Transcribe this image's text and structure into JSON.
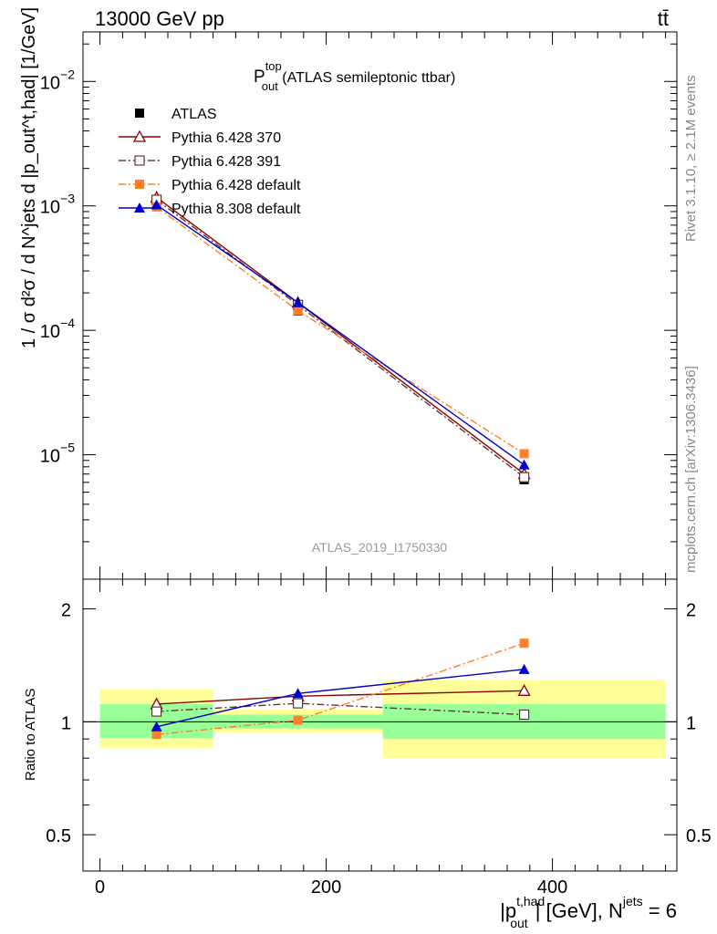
{
  "header": {
    "left": "13000 GeV pp",
    "right": "tt̄",
    "side_top": "Rivet 3.1.10, ≥ 2.1M events",
    "side_bottom": "mcplots.cern.ch [arXiv:1306.3436]",
    "watermark": "ATLAS_2019_I1750330"
  },
  "main_title": {
    "p": "P",
    "sup": "top",
    "sub": "out",
    "rest": " (ATLAS semileptonic ttbar)"
  },
  "axes": {
    "xlabel": {
      "pre": "|p",
      "sup": "t,had",
      "sub": "out",
      "mid": "| [GeV], N",
      "sup2": "jets",
      "post": " = 6"
    },
    "ylabel_top": "1 / σ d²σ / d N^jets d |p_out^t,had| [1/GeV]",
    "ylabel_ratio": "Ratio to ATLAS"
  },
  "ticks": {
    "top_y": [
      {
        "base": "10",
        "exp": "−2",
        "v": 0.01
      },
      {
        "base": "10",
        "exp": "−3",
        "v": 0.001
      },
      {
        "base": "10",
        "exp": "−4",
        "v": 0.0001
      },
      {
        "base": "10",
        "exp": "−5",
        "v": 1e-05
      }
    ],
    "ratio_y": [
      {
        "label": "2",
        "v": 2
      },
      {
        "label": "1",
        "v": 1
      },
      {
        "label": "0.5",
        "v": 0.5
      }
    ],
    "x": [
      {
        "label": "0",
        "v": 0
      },
      {
        "label": "200",
        "v": 200
      },
      {
        "label": "400",
        "v": 400
      }
    ]
  },
  "chart_data": [
    {
      "type": "line",
      "title": "P_out^top (ATLAS semileptonic ttbar)",
      "xlabel": "|p_out^t,had| [GeV], N^jets = 6",
      "ylabel": "1 / σ d²σ / d N^jets d |p_out^t,had| [1/GeV]",
      "xlim": [
        -15,
        510
      ],
      "ylim": [
        1e-06,
        0.025
      ],
      "yscale": "log",
      "legend_position": "top-left",
      "x": [
        50,
        175,
        375
      ],
      "series": [
        {
          "name": "ATLAS",
          "values": [
            0.00105,
            0.000143,
            6.3e-06
          ],
          "color": "#000000",
          "marker": "square-filled",
          "line": "none"
        },
        {
          "name": "Pythia 6.428 370",
          "values": [
            0.00117,
            0.000167,
            7e-06
          ],
          "color": "#8b0000",
          "marker": "triangle-open",
          "line": "solid"
        },
        {
          "name": "Pythia 6.428 391",
          "values": [
            0.00112,
            0.00016,
            6.6e-06
          ],
          "color": "#5c3a3a",
          "marker": "square-open",
          "line": "dash-dot"
        },
        {
          "name": "Pythia 6.428 default",
          "values": [
            0.00098,
            0.000144,
            1.02e-05
          ],
          "color": "#ff7f2a",
          "marker": "square-filled",
          "line": "dash-dot"
        },
        {
          "name": "Pythia 8.308 default",
          "values": [
            0.00102,
            0.000167,
            8.3e-06
          ],
          "color": "#0000cc",
          "marker": "triangle-filled",
          "line": "solid"
        }
      ]
    },
    {
      "type": "line",
      "title": "",
      "xlabel": "|p_out^t,had| [GeV], N^jets = 6",
      "ylabel": "Ratio to ATLAS",
      "xlim": [
        -15,
        510
      ],
      "ylim": [
        0.4,
        2.4
      ],
      "yscale": "log",
      "x": [
        50,
        175,
        375
      ],
      "bands": [
        {
          "x": [
            0,
            100
          ],
          "inner": [
            0.905,
            1.115
          ],
          "outer": [
            0.85,
            1.22
          ]
        },
        {
          "x": [
            100,
            250
          ],
          "inner": [
            0.96,
            1.045
          ],
          "outer": [
            0.935,
            1.08
          ]
        },
        {
          "x": [
            250,
            500
          ],
          "inner": [
            0.9,
            1.115
          ],
          "outer": [
            0.8,
            1.29
          ]
        }
      ],
      "band_colors": {
        "inner": "#99ff99",
        "outer": "#ffff99"
      },
      "series": [
        {
          "name": "Pythia 6.428 370",
          "values": [
            1.115,
            1.17,
            1.21
          ],
          "color": "#8b0000",
          "marker": "triangle-open",
          "line": "solid"
        },
        {
          "name": "Pythia 6.428 391",
          "values": [
            1.065,
            1.12,
            1.045
          ],
          "color": "#5c3a3a",
          "marker": "square-open",
          "line": "dash-dot"
        },
        {
          "name": "Pythia 6.428 default",
          "values": [
            0.925,
            1.01,
            1.62
          ],
          "color": "#ff7f2a",
          "marker": "square-filled",
          "line": "dash-dot"
        },
        {
          "name": "Pythia 8.308 default",
          "values": [
            0.97,
            1.19,
            1.38
          ],
          "color": "#0000cc",
          "marker": "triangle-filled",
          "line": "solid"
        }
      ]
    }
  ]
}
